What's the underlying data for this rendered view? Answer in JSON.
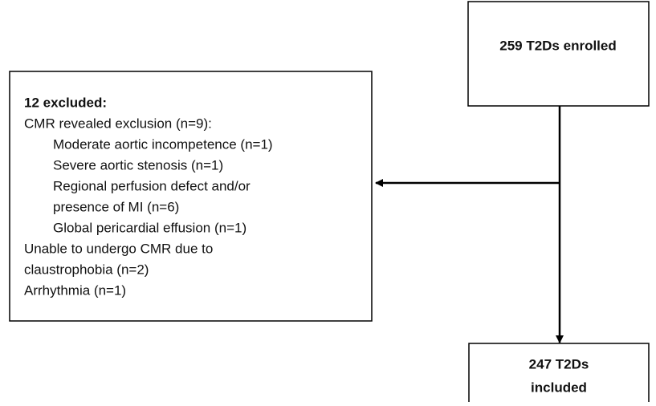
{
  "enrolled": {
    "label": "259 T2Ds enrolled"
  },
  "excluded": {
    "title": "12 excluded:",
    "lines": [
      "CMR revealed exclusion (n=9):",
      "Moderate aortic incompetence (n=1)",
      "Severe aortic stenosis (n=1)",
      "Regional perfusion defect and/or",
      "presence of MI (n=6)",
      "Global pericardial effusion (n=1)",
      "Unable to undergo CMR due to",
      "claustrophobia (n=2)",
      "Arrhythmia (n=1)"
    ]
  },
  "included": {
    "lines": [
      "247 T2Ds",
      "included"
    ]
  }
}
